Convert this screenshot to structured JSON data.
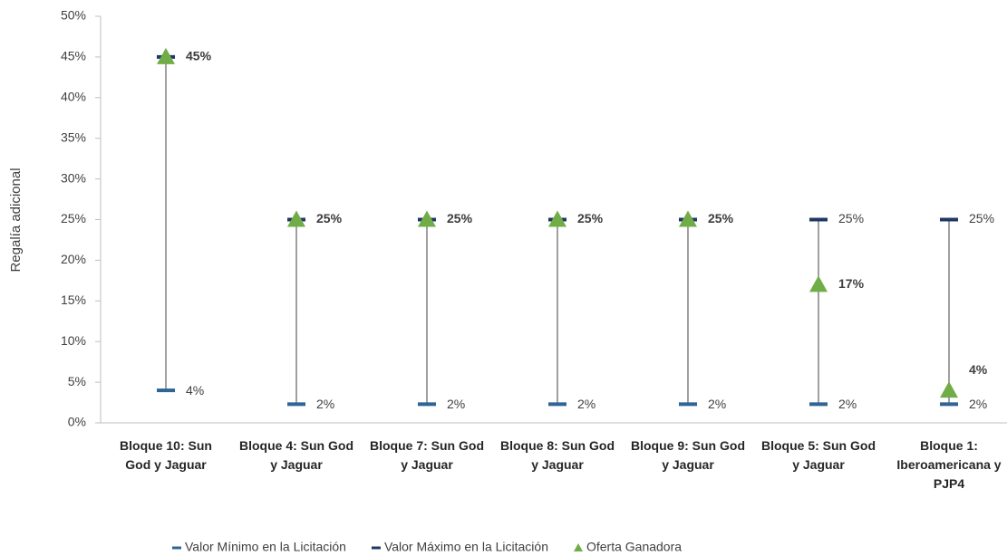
{
  "chart_data": {
    "type": "high-low",
    "y_label": "Regalía adicional",
    "categories": [
      "Bloque 10: Sun God y Jaguar",
      "Bloque 4: Sun God y Jaguar",
      "Bloque 7: Sun God y Jaguar",
      "Bloque 8: Sun God y Jaguar",
      "Bloque 9: Sun God y Jaguar",
      "Bloque 5: Sun God y Jaguar",
      "Bloque 1: Iberoamericana y PJP4"
    ],
    "series": [
      {
        "name": "Valor Mínimo en la Licitación",
        "color": "#2f6596",
        "marker": "dash",
        "values": [
          4,
          2.3,
          2.3,
          2.3,
          2.3,
          2.3,
          2.3
        ],
        "value_labels": [
          "4%",
          "2%",
          "2%",
          "2%",
          "2%",
          "2%",
          "2%"
        ]
      },
      {
        "name": "Valor Máximo en la Licitación",
        "color": "#1f3864",
        "marker": "dash",
        "values": [
          45,
          25,
          25,
          25,
          25,
          25,
          25
        ],
        "value_labels": [
          "45%",
          "25%",
          "25%",
          "25%",
          "25%",
          "25%",
          "25%"
        ]
      },
      {
        "name": "Oferta Ganadora",
        "color": "#70ad47",
        "marker": "triangle",
        "values": [
          45,
          25,
          25,
          25,
          25,
          17,
          4
        ],
        "value_labels": [
          "45%",
          "25%",
          "25%",
          "25%",
          "25%",
          "17%",
          "4%"
        ]
      }
    ],
    "ylim": [
      0,
      50
    ],
    "yticks": [
      {
        "value": 0,
        "label": "0%"
      },
      {
        "value": 5,
        "label": "5%"
      },
      {
        "value": 10,
        "label": "10%"
      },
      {
        "value": 15,
        "label": "15%"
      },
      {
        "value": 20,
        "label": "20%"
      },
      {
        "value": 25,
        "label": "25%"
      },
      {
        "value": 30,
        "label": "30%"
      },
      {
        "value": 35,
        "label": "35%"
      },
      {
        "value": 40,
        "label": "40%"
      },
      {
        "value": 45,
        "label": "45%"
      },
      {
        "value": 50,
        "label": "50%"
      }
    ],
    "legend": "bottom"
  }
}
